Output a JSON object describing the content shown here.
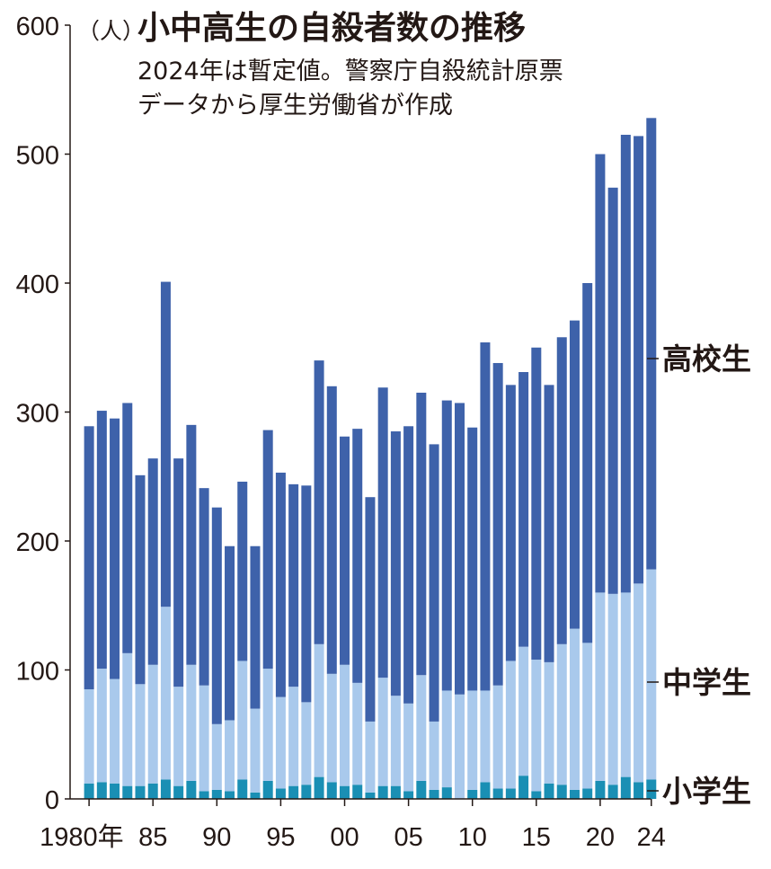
{
  "chart_data": {
    "type": "bar",
    "stacked": true,
    "title": "小中高生の自殺者数の推移",
    "subtitle_lines": [
      "2024年は暫定値。警察庁自殺統計原票",
      "データから厚生労働省が作成"
    ],
    "y_unit": "（人）",
    "ylim": [
      0,
      600
    ],
    "y_ticks": [
      0,
      100,
      200,
      300,
      400,
      500,
      600
    ],
    "x_tick_labels": [
      {
        "year": 1980,
        "label": "1980年"
      },
      {
        "year": 1985,
        "label": "85"
      },
      {
        "year": 1990,
        "label": "90"
      },
      {
        "year": 1995,
        "label": "95"
      },
      {
        "year": 2000,
        "label": "00"
      },
      {
        "year": 2005,
        "label": "05"
      },
      {
        "year": 2010,
        "label": "10"
      },
      {
        "year": 2015,
        "label": "15"
      },
      {
        "year": 2020,
        "label": "20"
      },
      {
        "year": 2024,
        "label": "24"
      }
    ],
    "categories": [
      1980,
      1981,
      1982,
      1983,
      1984,
      1985,
      1986,
      1987,
      1988,
      1989,
      1990,
      1991,
      1992,
      1993,
      1994,
      1995,
      1996,
      1997,
      1998,
      1999,
      2000,
      2001,
      2002,
      2003,
      2004,
      2005,
      2006,
      2007,
      2008,
      2009,
      2010,
      2011,
      2012,
      2013,
      2014,
      2015,
      2016,
      2017,
      2018,
      2019,
      2020,
      2021,
      2022,
      2023,
      2024
    ],
    "series": [
      {
        "name": "小学生",
        "color": "#1a8fb4",
        "values": [
          12,
          13,
          12,
          10,
          10,
          12,
          15,
          10,
          14,
          6,
          7,
          6,
          15,
          5,
          14,
          8,
          10,
          11,
          17,
          13,
          10,
          11,
          5,
          10,
          10,
          6,
          14,
          7,
          9,
          0,
          7,
          13,
          8,
          8,
          18,
          6,
          12,
          11,
          7,
          8,
          14,
          11,
          17,
          13,
          15
        ]
      },
      {
        "name": "中学生",
        "color": "#a9c9ec",
        "values": [
          73,
          88,
          81,
          103,
          79,
          92,
          134,
          77,
          90,
          82,
          51,
          55,
          92,
          65,
          87,
          71,
          77,
          64,
          103,
          84,
          94,
          79,
          55,
          84,
          70,
          68,
          82,
          53,
          75,
          81,
          77,
          71,
          80,
          99,
          100,
          102,
          94,
          109,
          125,
          113,
          146,
          148,
          143,
          154,
          163
        ]
      },
      {
        "name": "高校生",
        "color": "#3e62aa",
        "values": [
          204,
          200,
          202,
          194,
          162,
          160,
          252,
          177,
          186,
          153,
          168,
          135,
          139,
          126,
          185,
          174,
          157,
          168,
          220,
          223,
          177,
          197,
          174,
          225,
          205,
          215,
          219,
          215,
          225,
          226,
          204,
          270,
          250,
          214,
          213,
          242,
          215,
          238,
          239,
          279,
          340,
          315,
          355,
          347,
          350
        ]
      }
    ],
    "series_labels": [
      "高校生",
      "中学生",
      "小学生"
    ]
  }
}
